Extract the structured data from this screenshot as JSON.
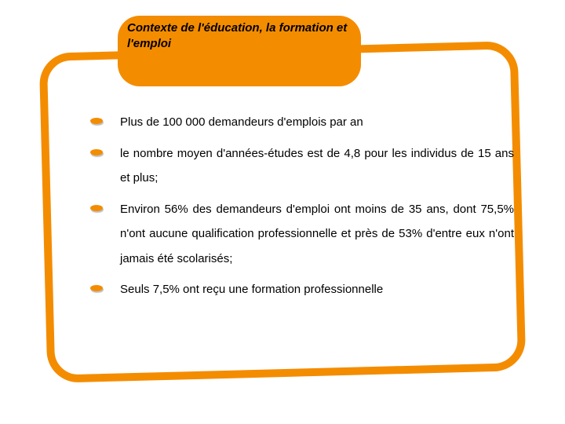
{
  "colors": {
    "accent": "#f48c00",
    "text": "#000000",
    "bg": "#ffffff"
  },
  "title": "Contexte de l'éducation, la formation et l'emploi",
  "bullets": [
    "Plus de 100 000 demandeurs d'emplois par an",
    "le nombre moyen d'années-études est de 4,8 pour les individus de 15 ans et plus;",
    "Environ 56% des demandeurs d'emploi ont moins de 35 ans, dont 75,5% n'ont aucune qualification professionnelle et près de 53% d'entre eux n'ont jamais été scolarisés;",
    "Seuls 7,5% ont reçu une formation professionnelle"
  ],
  "title_fontsize": 15,
  "body_fontsize": 15
}
